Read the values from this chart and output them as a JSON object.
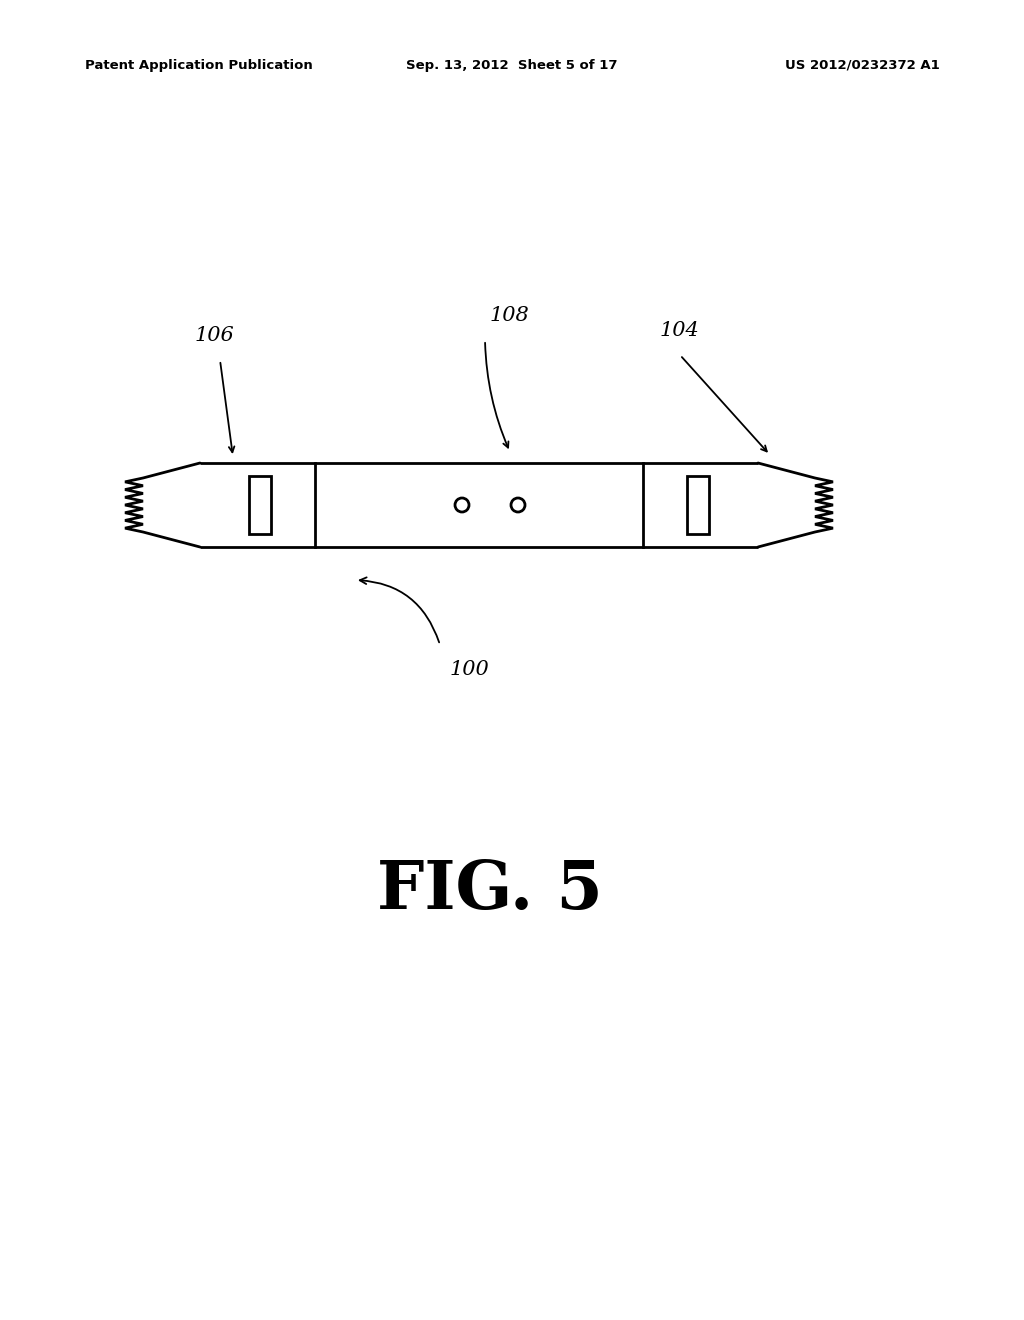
{
  "background_color": "#ffffff",
  "line_color": "#000000",
  "header_left": "Patent Application Publication",
  "header_center": "Sep. 13, 2012  Sheet 5 of 17",
  "header_right": "US 2012/0232372 A1",
  "figure_label": "FIG. 5",
  "label_100": "100",
  "label_104": "104",
  "label_106": "106",
  "label_108": "108",
  "header_fontsize": 9.5,
  "figure_label_fontsize": 48,
  "annotation_fontsize": 15
}
